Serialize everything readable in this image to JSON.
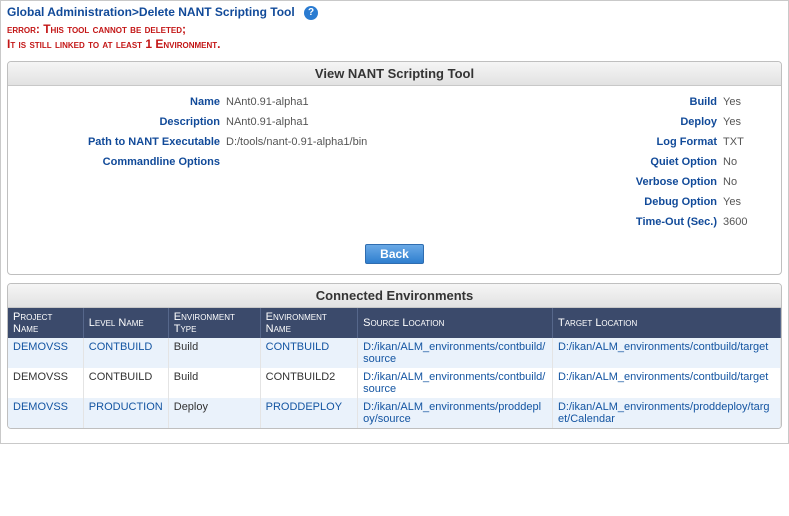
{
  "breadcrumb": "Global Administration>Delete NANT Scripting Tool",
  "error_line1": "error: This tool cannot be deleted;",
  "error_line2": "It is still linked to at least 1 Environment.",
  "view_panel": {
    "title": "View NANT Scripting Tool",
    "left": {
      "name_label": "Name",
      "name_value": "NAnt0.91-alpha1",
      "desc_label": "Description",
      "desc_value": "NAnt0.91-alpha1",
      "path_label": "Path to NANT Executable",
      "path_value": "D:/tools/nant-0.91-alpha1/bin",
      "cmd_label": "Commandline Options",
      "cmd_value": ""
    },
    "right": {
      "build_label": "Build",
      "build_value": "Yes",
      "deploy_label": "Deploy",
      "deploy_value": "Yes",
      "logfmt_label": "Log Format",
      "logfmt_value": "TXT",
      "quiet_label": "Quiet Option",
      "quiet_value": "No",
      "verbose_label": "Verbose Option",
      "verbose_value": "No",
      "debug_label": "Debug Option",
      "debug_value": "Yes",
      "timeout_label": "Time-Out (Sec.)",
      "timeout_value": "3600"
    },
    "back_button": "Back"
  },
  "env_panel": {
    "title": "Connected Environments",
    "columns": {
      "project": "Project Name",
      "level": "Level Name",
      "envtype": "Environment Type",
      "envname": "Environment Name",
      "source": "Source Location",
      "target": "Target Location"
    },
    "rows": [
      {
        "project": "DEMOVSS",
        "level": "CONTBUILD",
        "envtype": "Build",
        "envname": "CONTBUILD",
        "source": "D:/ikan/ALM_environments/contbuild/source",
        "target": "D:/ikan/ALM_environments/contbuild/target",
        "linked": true
      },
      {
        "project": "DEMOVSS",
        "level": "CONTBUILD",
        "envtype": "Build",
        "envname": "CONTBUILD2",
        "source": "D:/ikan/ALM_environments/contbuild/source",
        "target": "D:/ikan/ALM_environments/contbuild/target",
        "linked": false
      },
      {
        "project": "DEMOVSS",
        "level": "PRODUCTION",
        "envtype": "Deploy",
        "envname": "PRODDEPLOY",
        "source": "D:/ikan/ALM_environments/proddeploy/source",
        "target": "D:/ikan/ALM_environments/proddeploy/target/Calendar",
        "linked": true
      }
    ]
  }
}
